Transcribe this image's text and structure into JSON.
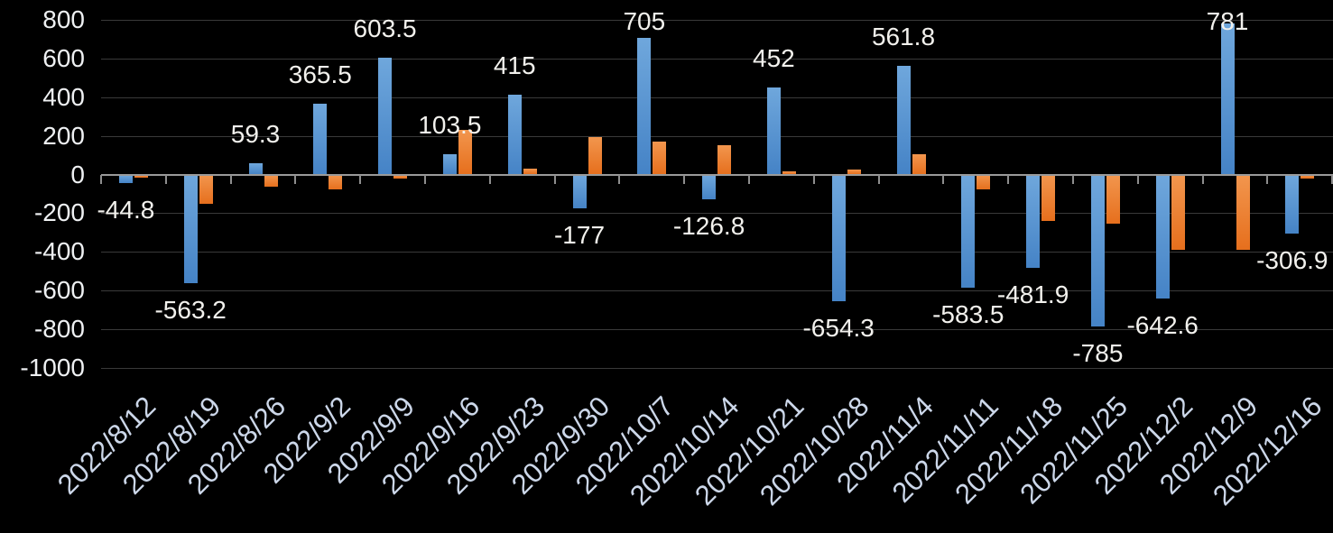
{
  "chart_data": {
    "type": "bar",
    "title": "",
    "legend_position": "none",
    "grid": true,
    "categories": [
      "2022/8/12",
      "2022/8/19",
      "2022/8/26",
      "2022/9/2",
      "2022/9/9",
      "2022/9/16",
      "2022/9/23",
      "2022/9/30",
      "2022/10/7",
      "2022/10/14",
      "2022/10/21",
      "2022/10/28",
      "2022/11/4",
      "2022/11/11",
      "2022/11/18",
      "2022/11/25",
      "2022/12/2",
      "2022/12/9",
      "2022/12/16"
    ],
    "series": [
      {
        "name": "series_blue",
        "color": "#5b9bd5",
        "color_gradient_top": "#6fa7dc",
        "color_gradient_bottom": "#4583c6",
        "values": [
          -44.8,
          -563.2,
          59.3,
          365.5,
          603.5,
          103.5,
          415,
          -177,
          705,
          -126.8,
          452,
          -654.3,
          561.8,
          -583.5,
          -481.9,
          -785,
          -642.6,
          781,
          -306.9
        ],
        "data_labels": [
          "-44.8",
          "-563.2",
          "59.3",
          "365.5",
          "603.5",
          "103.5",
          "415",
          "-177",
          "705",
          "-126.8",
          "452",
          "-654.3",
          "561.8",
          "-583.5",
          "-481.9",
          "-785",
          "-642.6",
          "781",
          "-306.9"
        ]
      },
      {
        "name": "series_orange",
        "color": "#ed7d31",
        "color_gradient_top": "#f2964e",
        "color_gradient_bottom": "#e66f1d",
        "values": [
          -15,
          -150,
          -65,
          -75,
          -22,
          230,
          30,
          195,
          170,
          150,
          15,
          25,
          105,
          -78,
          -242,
          -252,
          -388,
          -390,
          -20
        ],
        "data_labels": []
      }
    ],
    "ylim": [
      -1000,
      800
    ],
    "ytick_interval": 200,
    "yticks": [
      {
        "label": "800",
        "value": 800
      },
      {
        "label": "600",
        "value": 600
      },
      {
        "label": "400",
        "value": 400
      },
      {
        "label": "200",
        "value": 200
      },
      {
        "label": "0",
        "value": 0
      },
      {
        "label": "-200",
        "value": -200
      },
      {
        "label": "-400",
        "value": -400
      },
      {
        "label": "-600",
        "value": -600
      },
      {
        "label": "-800",
        "value": -800
      },
      {
        "label": "-1000",
        "value": -1000
      }
    ],
    "xlabel": "",
    "ylabel": ""
  },
  "colors": {
    "background": "#000000",
    "gridline": "#3a3a3a",
    "axis_line": "#9a9a9a",
    "tick_mark": "#8e8e8e",
    "y_label_text": "#eef0f2",
    "data_label_text": "#f2f1ed",
    "x_label_text": "#ccd7e9"
  }
}
